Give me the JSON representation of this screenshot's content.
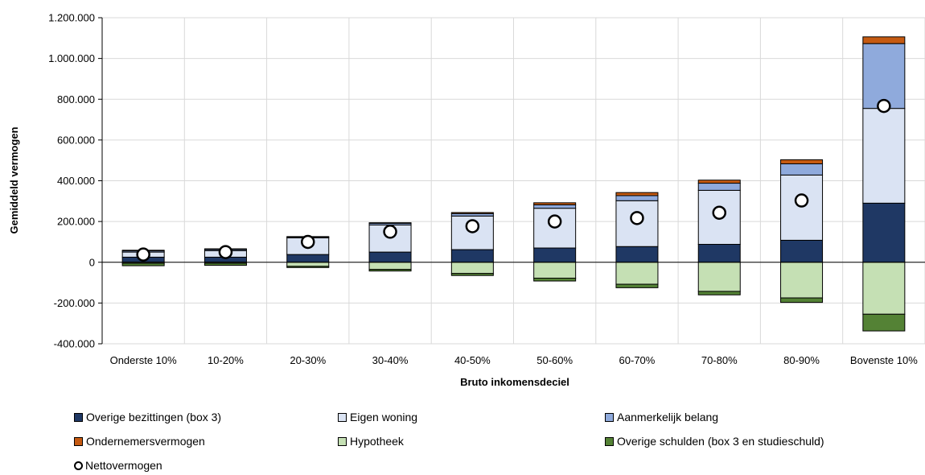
{
  "chart_data": {
    "type": "bar",
    "stacked": true,
    "xlabel": "Bruto inkomensdeciel",
    "ylabel": "Gemiddeld vermogen",
    "ylim": [
      -400000,
      1200000
    ],
    "yticks": [
      -400000,
      -200000,
      0,
      200000,
      400000,
      600000,
      800000,
      1000000,
      1200000
    ],
    "ytick_labels": [
      "-400.000",
      "-200.000",
      "0",
      "200.000",
      "400.000",
      "600.000",
      "800.000",
      "1.000.000",
      "1.200.000"
    ],
    "grid": "vertical",
    "legend_position": "bottom",
    "categories": [
      "Onderste 10%",
      "10-20%",
      "20-30%",
      "30-40%",
      "40-50%",
      "50-60%",
      "60-70%",
      "70-80%",
      "80-90%",
      "Bovenste 10%"
    ],
    "series": [
      {
        "name": "Overige bezittingen (box 3)",
        "color": "#1f3864",
        "values": [
          25000,
          25000,
          38000,
          50000,
          62000,
          70000,
          77000,
          88000,
          108000,
          290000
        ]
      },
      {
        "name": "Eigen woning",
        "color": "#dae3f3",
        "values": [
          25000,
          32000,
          82000,
          133000,
          165000,
          195000,
          225000,
          265000,
          320000,
          465000
        ]
      },
      {
        "name": "Aanmerkelijk belang",
        "color": "#8faadc",
        "values": [
          6000,
          6000,
          4000,
          8000,
          12000,
          17000,
          25000,
          35000,
          55000,
          318000
        ]
      },
      {
        "name": "Ondernemersvermogen",
        "color": "#c55a11",
        "values": [
          3000,
          3000,
          2000,
          3000,
          5000,
          10000,
          15000,
          15000,
          20000,
          33000
        ]
      },
      {
        "name": "Hypotheek",
        "color": "#c5e0b4",
        "values": [
          -5000,
          -5000,
          -20000,
          -35000,
          -55000,
          -78000,
          -108000,
          -143000,
          -175000,
          -255000
        ]
      },
      {
        "name": "Overige schulden (box 3 en studieschuld)",
        "color": "#548235",
        "values": [
          -12000,
          -10000,
          -6000,
          -8000,
          -10000,
          -14000,
          -17000,
          -17000,
          -22000,
          -82000
        ]
      }
    ],
    "markers": {
      "name": "Nettovermogen",
      "values": [
        38000,
        50000,
        100000,
        150000,
        177000,
        200000,
        217000,
        243000,
        303000,
        767000
      ]
    }
  }
}
